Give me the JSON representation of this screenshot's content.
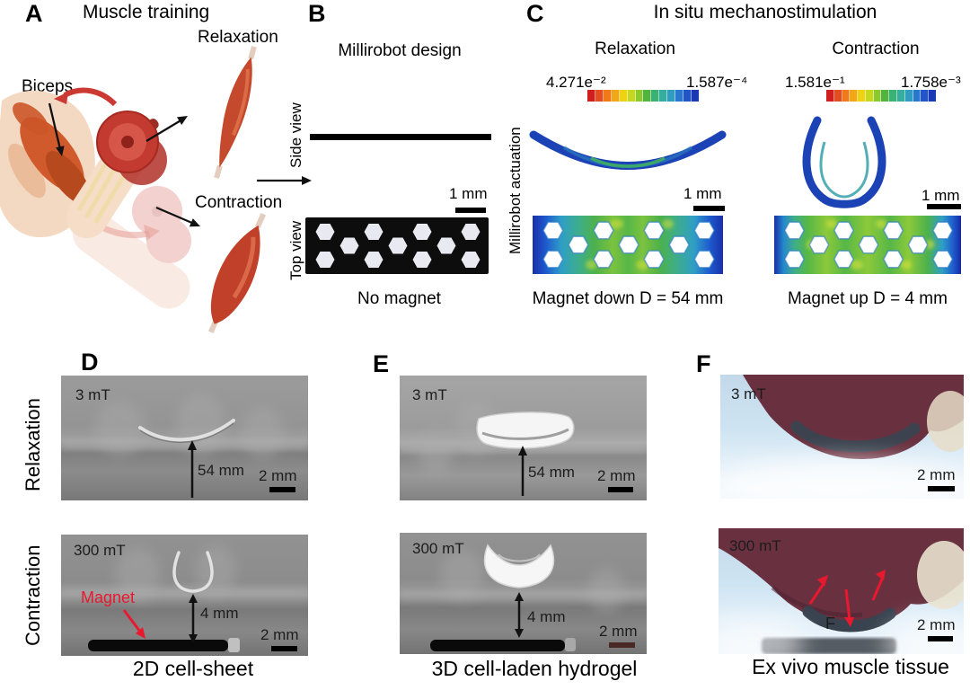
{
  "figure": {
    "panels": {
      "A": {
        "letter": "A",
        "title": "Muscle training",
        "biceps_label": "Biceps",
        "relaxation_label": "Relaxation",
        "contraction_label": "Contraction"
      },
      "B": {
        "letter": "B",
        "title": "Millirobot design",
        "side_view_label": "Side view",
        "top_view_label": "Top view",
        "scale_bar": "1 mm",
        "caption": "No magnet"
      },
      "C": {
        "letter": "C",
        "title": "In situ mechanostimulation",
        "axis_label": "Millirobot actuation",
        "relaxation": {
          "label": "Relaxation",
          "colorbar_left": "4.271e⁻²",
          "colorbar_right": "1.587e⁻⁴",
          "scale_bar": "1 mm",
          "caption": "Magnet down D = 54 mm"
        },
        "contraction": {
          "label": "Contraction",
          "colorbar_left": "1.581e⁻¹",
          "colorbar_right": "1.758e⁻³",
          "scale_bar": "1 mm",
          "caption": "Magnet up D = 4 mm"
        }
      },
      "D": {
        "letter": "D",
        "row_top_label": "Relaxation",
        "row_bottom_label": "Contraction",
        "caption": "2D cell-sheet",
        "top": {
          "field": "3 mT",
          "distance": "54 mm",
          "scale_bar": "2 mm"
        },
        "bottom": {
          "field": "300 mT",
          "distance": "4 mm",
          "scale_bar": "2 mm",
          "magnet_label": "Magnet"
        }
      },
      "E": {
        "letter": "E",
        "caption": "3D cell-laden hydrogel",
        "top": {
          "field": "3 mT",
          "distance": "54 mm",
          "scale_bar": "2 mm"
        },
        "bottom": {
          "field": "300 mT",
          "distance": "4 mm",
          "scale_bar": "2 mm"
        }
      },
      "F": {
        "letter": "F",
        "caption": "Ex vivo muscle tissue",
        "top": {
          "field": "3 mT",
          "scale_bar": "2 mm"
        },
        "bottom": {
          "field": "300 mT",
          "scale_bar": "2 mm",
          "force_label": "F"
        }
      }
    },
    "colors": {
      "colorbar": [
        "#d01f1f",
        "#e44d1d",
        "#f0791a",
        "#f2a816",
        "#eed313",
        "#c4d81f",
        "#8cc92f",
        "#52b43e",
        "#3bb275",
        "#35ae9f",
        "#2f9cc0",
        "#2a77cf",
        "#2255c9",
        "#1b39b2"
      ],
      "fea_blue": "#1c43b5",
      "fea_green": "#4cb14b",
      "magnet_red": "#e8192e",
      "tissue_maroon": "#693140",
      "photo_gray": "#909090",
      "photo_blue": "#cfe4f2"
    }
  }
}
